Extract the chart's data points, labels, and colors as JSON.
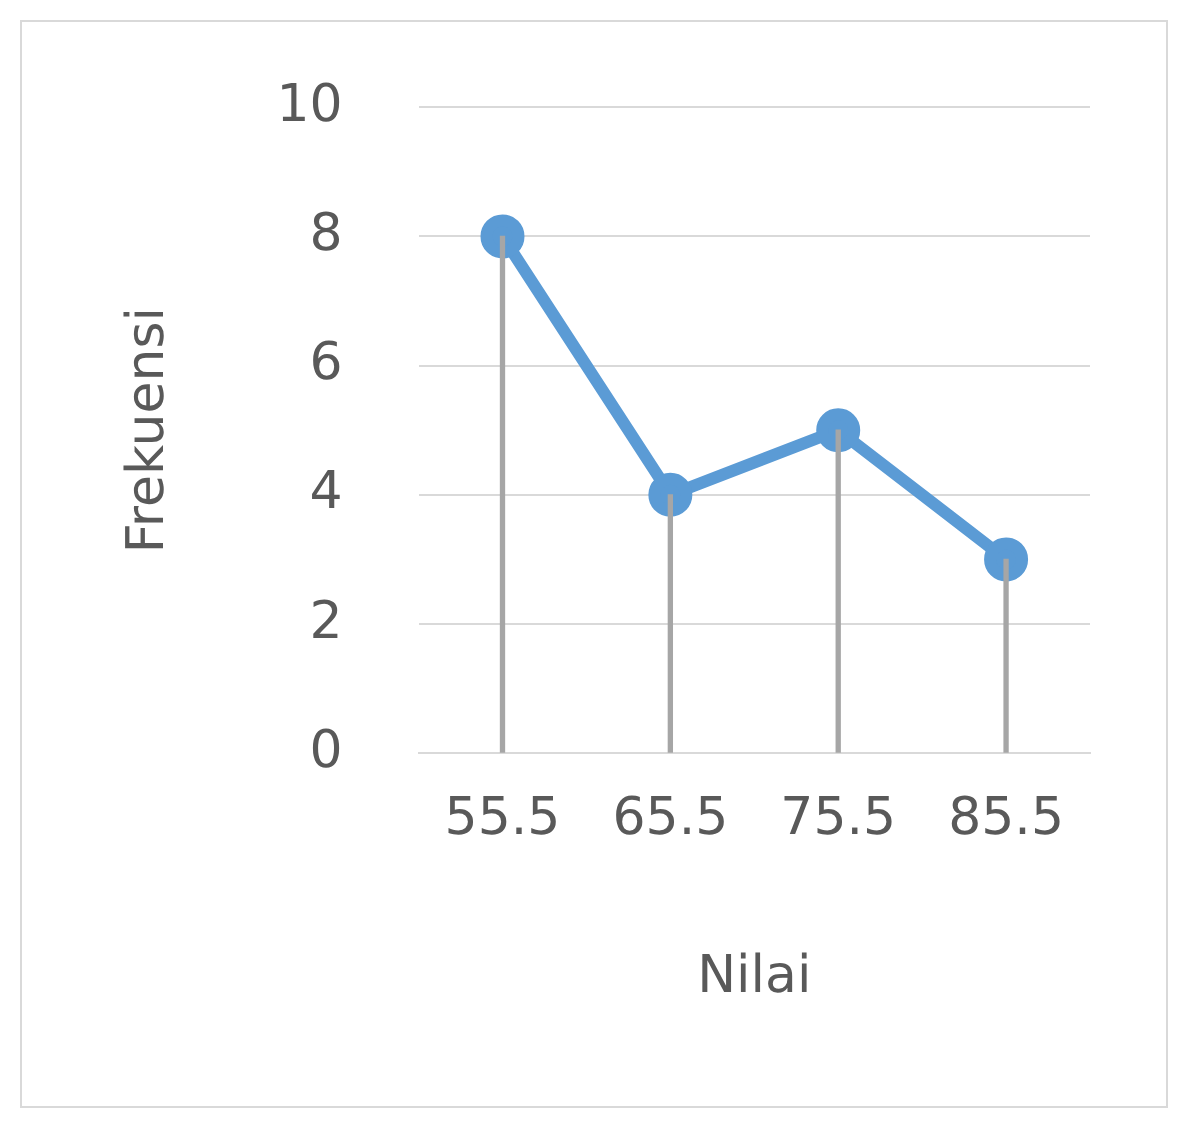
{
  "chart_data": {
    "type": "line",
    "xlabel": "Nilai",
    "ylabel": "Frekuensi",
    "categories": [
      "55.5",
      "65.5",
      "75.5",
      "85.5"
    ],
    "ylim": [
      0,
      10
    ],
    "yticks": [
      0,
      2,
      4,
      6,
      8,
      10
    ],
    "grid": "y",
    "legend": false,
    "series": [
      {
        "color": "#5b9bd5",
        "marker": "circle",
        "values": [
          8,
          4,
          5,
          3
        ]
      },
      {
        "type": "bar",
        "color": "#a6a6a6",
        "values": [
          8,
          4,
          5,
          3
        ]
      }
    ]
  }
}
